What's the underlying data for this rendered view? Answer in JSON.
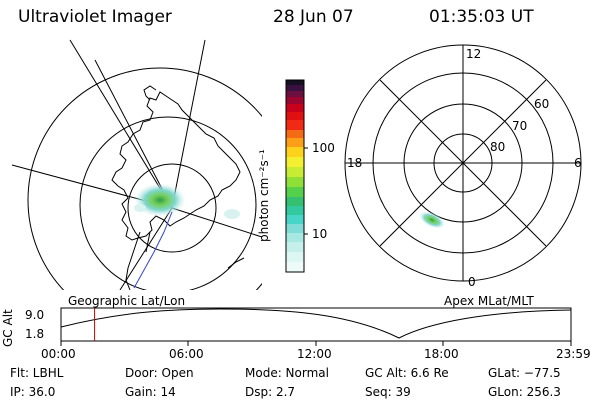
{
  "header": {
    "instrument": "Ultraviolet Imager",
    "date": "28 Jun 07",
    "time": "01:35:03 UT"
  },
  "colorbar": {
    "unit": "photon cm⁻²s⁻¹",
    "ticks": [
      "100",
      "10"
    ]
  },
  "right_plot": {
    "hour_labels": [
      "12",
      "18",
      "6",
      "0"
    ],
    "lat_labels": [
      "60",
      "70",
      "80"
    ]
  },
  "map_labels": {
    "left": "Geographic Lat/Lon",
    "right": "Apex  MLat/MLT"
  },
  "altitude_plot": {
    "ylabel": "GC Alt",
    "ymax": "9.0",
    "ymin": "1.8",
    "xticks": [
      "00:00",
      "06:00",
      "12:00",
      "18:00",
      "23:59"
    ],
    "current_time_hours": 1.58
  },
  "status": {
    "flt": "Flt: LBHL",
    "ip": "IP: 36.0",
    "door": "Door: Open",
    "gain": "Gain: 14",
    "mode": "Mode: Normal",
    "dsp": "Dsp:     2.7",
    "gcalt": "GC Alt: 6.6 Re",
    "seq": "Seq: 39",
    "glat": "GLat: −77.5",
    "glon": "GLon: 256.3"
  },
  "colors": {
    "marker": "#cc0000",
    "track": "#3344cc",
    "aurora_core": "#55c060",
    "aurora_mid": "#7fd6cf",
    "aurora_faint": "#cbeee9"
  }
}
